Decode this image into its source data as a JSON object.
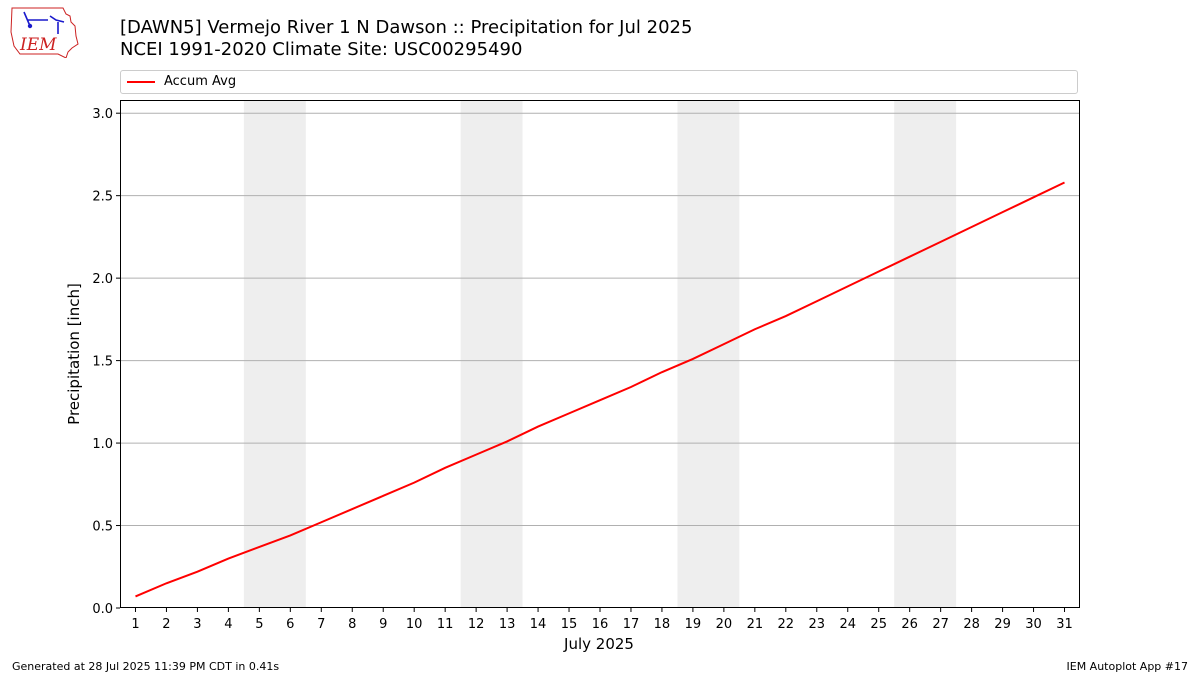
{
  "header": {
    "title_line1": "[DAWN5] Vermejo River 1 N Dawson :: Precipitation for Jul 2025",
    "title_line2": "NCEI 1991-2020 Climate Site: USC00295490"
  },
  "logo": {
    "text": "IEM",
    "icon": "iem-logo-icon"
  },
  "footer": {
    "left": "Generated at 28 Jul 2025 11:39 PM CDT in 0.41s",
    "right": "IEM Autoplot App #17"
  },
  "colors": {
    "accum_line": "#ff0000",
    "weekend_band": "#eeeeee",
    "grid": "#b0b0b0",
    "logo": "#cc2222"
  },
  "chart_data": {
    "type": "line",
    "title": "[DAWN5] Vermejo River 1 N Dawson :: Precipitation for Jul 2025",
    "subtitle": "NCEI 1991-2020 Climate Site: USC00295490",
    "xlabel": "July 2025",
    "ylabel": "Precipitation [inch]",
    "x": [
      1,
      2,
      3,
      4,
      5,
      6,
      7,
      8,
      9,
      10,
      11,
      12,
      13,
      14,
      15,
      16,
      17,
      18,
      19,
      20,
      21,
      22,
      23,
      24,
      25,
      26,
      27,
      28,
      29,
      30,
      31
    ],
    "xticks": [
      "1",
      "2",
      "3",
      "4",
      "5",
      "6",
      "7",
      "8",
      "9",
      "10",
      "11",
      "12",
      "13",
      "14",
      "15",
      "16",
      "17",
      "18",
      "19",
      "20",
      "21",
      "22",
      "23",
      "24",
      "25",
      "26",
      "27",
      "28",
      "29",
      "30",
      "31"
    ],
    "yticks": [
      "0.0",
      "0.5",
      "1.0",
      "1.5",
      "2.0",
      "2.5",
      "3.0"
    ],
    "ylim": [
      0,
      3.08
    ],
    "xlim": [
      0.5,
      31.5
    ],
    "grid": "horizontal",
    "legend_position": "top",
    "series": [
      {
        "name": "Accum Avg",
        "values": [
          0.07,
          0.15,
          0.22,
          0.3,
          0.37,
          0.44,
          0.52,
          0.6,
          0.68,
          0.76,
          0.85,
          0.93,
          1.01,
          1.1,
          1.18,
          1.26,
          1.34,
          1.43,
          1.51,
          1.6,
          1.69,
          1.77,
          1.86,
          1.95,
          2.04,
          2.13,
          2.22,
          2.31,
          2.4,
          2.49,
          2.58
        ]
      }
    ],
    "shaded_weekends": [
      [
        5,
        6
      ],
      [
        12,
        13
      ],
      [
        19,
        20
      ],
      [
        26,
        27
      ]
    ]
  }
}
